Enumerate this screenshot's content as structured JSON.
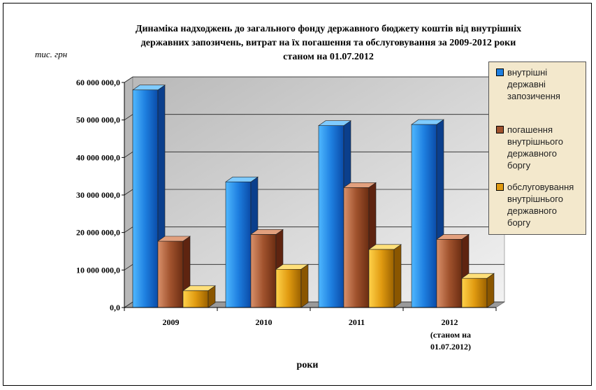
{
  "title_lines": [
    "Динаміка надходжень до загального фонду державного бюджету коштів від внутрішніх",
    "державних запозичень, витрат на їх погашення та обслуговування за 2009-2012 роки",
    "станом на 01.07.2012"
  ],
  "chart_data": {
    "type": "bar",
    "title": "Динаміка надходжень до загального фонду державного бюджету коштів від внутрішніх державних запозичень, витрат на їх погашення та обслуговування за 2009-2012 роки станом на 01.07.2012",
    "ylabel": "тис. грн",
    "xlabel": "роки",
    "categories": [
      "2009",
      "2010",
      "2011",
      "2012"
    ],
    "category_sublabels": [
      "",
      "",
      "",
      "(станом на 01.07.2012)"
    ],
    "yticks": [
      "0,0",
      "10 000 000,0",
      "20 000 000,0",
      "30 000 000,0",
      "40 000 000,0",
      "50 000 000,0",
      "60 000 000,0"
    ],
    "ylim": [
      0,
      60000000
    ],
    "grid": true,
    "legend_position": "right",
    "series": [
      {
        "name": "внутрішні державні запозичення",
        "color": "#1e7fe0",
        "values": [
          58000000,
          33500000,
          48500000,
          48800000
        ]
      },
      {
        "name": "погашення внутрішнього державного боргу",
        "color": "#a0522d",
        "values": [
          17700000,
          19500000,
          32000000,
          18200000
        ]
      },
      {
        "name": "обслуговування внутрішнього державного боргу",
        "color": "#e09a10",
        "values": [
          4500000,
          10200000,
          15500000,
          7800000
        ]
      }
    ],
    "legend_lines": [
      [
        "внутрішні",
        "державні",
        "запозичення"
      ],
      [
        "погашення",
        "внутрішнього",
        "державного",
        "боргу"
      ],
      [
        "обслуговування",
        "внутрішнього",
        "державного",
        "боргу"
      ]
    ]
  }
}
